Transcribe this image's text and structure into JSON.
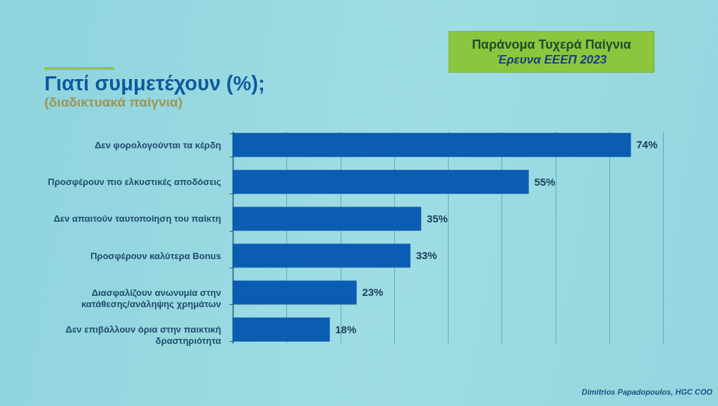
{
  "chart_data": {
    "type": "bar",
    "orientation": "horizontal",
    "title": "Γιατί συμμετέχουν (%);",
    "subtitle": "(διαδικτυακά παίγνια)",
    "categories": [
      "Δεν φορολογούνται τα κέρδη",
      "Προσφέρουν πιο ελκυστικές αποδόσεις",
      "Δεν απαιτούν ταυτοποίηση του παίκτη",
      "Προσφέρουν καλύτερα Bonus",
      "Διασφαλίζουν ανωνυμία στην κατάθεσης/ανάληψης χρημάτων",
      "Δεν επιβάλλουν όρια στην παικτική δραστηριότητα"
    ],
    "values": [
      74,
      55,
      35,
      33,
      23,
      18
    ],
    "value_labels": [
      "74%",
      "55%",
      "35%",
      "33%",
      "23%",
      "18%"
    ],
    "color": "#0b5cb3",
    "xlim": [
      0,
      80
    ],
    "xticks": [
      {
        "value": 0,
        "label": null
      },
      {
        "value": 10,
        "label": null
      },
      {
        "value": 20,
        "label": null
      },
      {
        "value": 30,
        "label": null
      },
      {
        "value": 40,
        "label": null
      },
      {
        "value": 50,
        "label": null
      },
      {
        "value": 60,
        "label": null
      },
      {
        "value": 70,
        "label": null
      },
      {
        "value": 80,
        "label": null
      }
    ],
    "grid": "x",
    "tick_labels": "y",
    "annotations": [
      "Παράνομα Τυχερά Παίγνια",
      "Έρευνα ΕΕΕΠ 2023",
      "Dimitrios Papadopoulos, HGC COO"
    ]
  }
}
